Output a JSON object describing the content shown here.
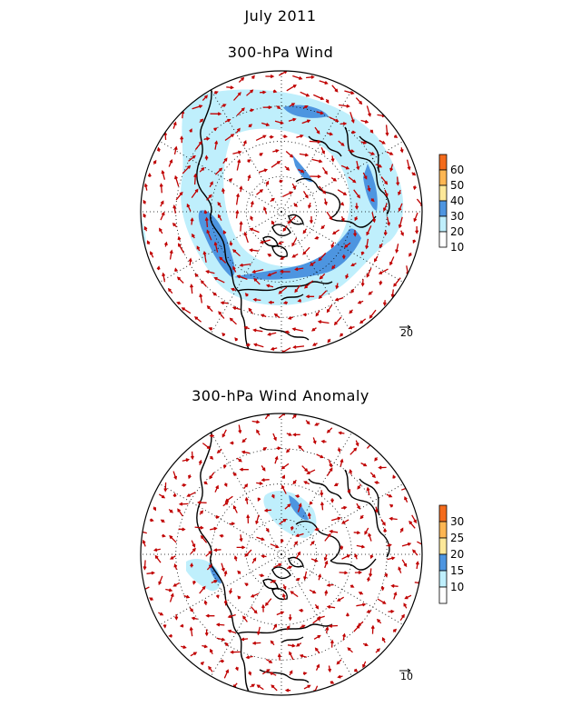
{
  "header": {
    "month_title": "July 2011",
    "panel1_title": "300-hPa Wind",
    "panel2_title": "300-hPa Wind Anomaly"
  },
  "panels": [
    {
      "id": "wind",
      "colorbar": {
        "labels": [
          "10",
          "20",
          "30",
          "40",
          "50",
          "60"
        ],
        "colors": [
          "#ffffff",
          "#bfeffc",
          "#4d95e0",
          "#fde899",
          "#fdb652",
          "#f46b1c"
        ]
      },
      "reference_vector_label": "20"
    },
    {
      "id": "anomaly",
      "colorbar": {
        "labels": [
          "10",
          "15",
          "20",
          "25",
          "30"
        ],
        "colors": [
          "#ffffff",
          "#bfeffc",
          "#4d95e0",
          "#fde899",
          "#fdb652",
          "#f46b1c"
        ]
      },
      "reference_vector_label": "10"
    }
  ],
  "colors": {
    "vector": "#c00000",
    "coast": "#000000",
    "grid": "#000000",
    "shade_light": "#bfeffc",
    "shade_mid": "#4d95e0"
  }
}
